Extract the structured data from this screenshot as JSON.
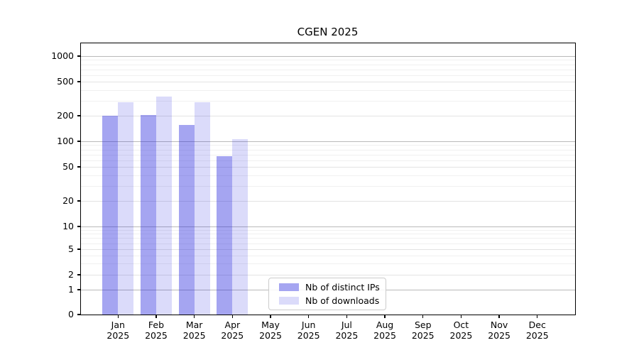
{
  "chart_data": {
    "type": "bar",
    "title": "CGEN 2025",
    "categories": [
      "Jan",
      "Feb",
      "Mar",
      "Apr",
      "May",
      "Jun",
      "Jul",
      "Aug",
      "Sep",
      "Oct",
      "Nov",
      "Dec"
    ],
    "category_year": "2025",
    "series": [
      {
        "name": "Nb of distinct IPs",
        "color": "#a5a5f1",
        "values": [
          200,
          205,
          155,
          67,
          null,
          null,
          null,
          null,
          null,
          null,
          null,
          null
        ]
      },
      {
        "name": "Nb of downloads",
        "color": "#dbdbfa",
        "values": [
          290,
          335,
          285,
          105,
          null,
          null,
          null,
          null,
          null,
          null,
          null,
          null
        ]
      }
    ],
    "yticks": [
      0,
      1,
      2,
      5,
      10,
      20,
      50,
      100,
      200,
      500,
      1000
    ],
    "ylim": [
      0,
      1500
    ],
    "xlabel": "",
    "ylabel": "",
    "scale": "symlog",
    "grid": true,
    "legend_position": "lower center, inside plot"
  }
}
